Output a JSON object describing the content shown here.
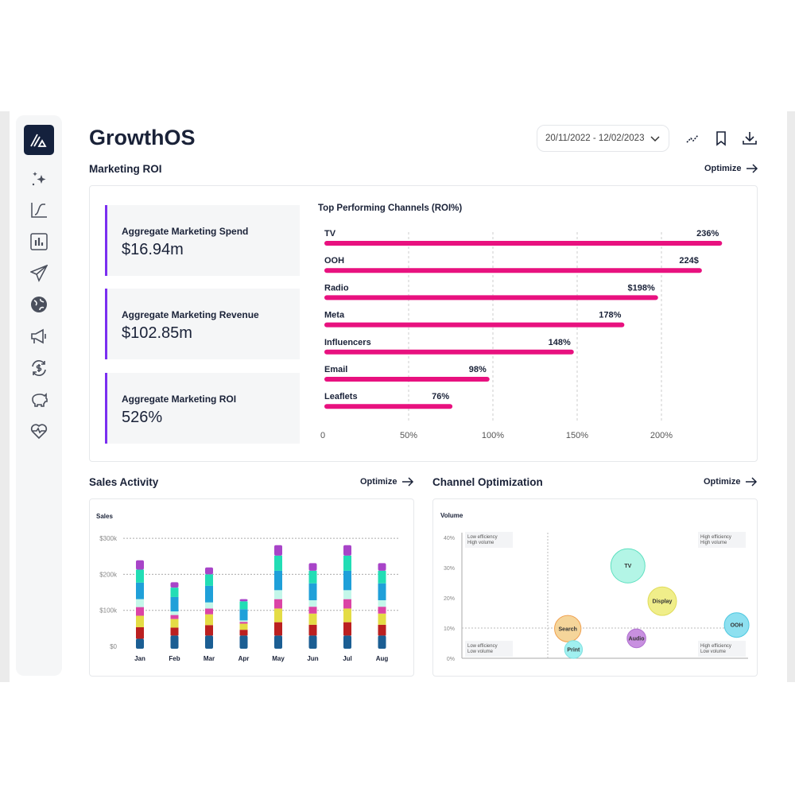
{
  "app": {
    "title": "GrowthOS"
  },
  "header": {
    "date_range": "20/11/2022 - 12/02/2023",
    "icons": [
      "sparkline-icon",
      "bookmark-icon",
      "download-icon"
    ]
  },
  "sidebar": {
    "items": [
      "logo",
      "sparkles-icon",
      "curve-chart-icon",
      "bar-chart-icon",
      "send-icon",
      "globe-icon",
      "megaphone-icon",
      "currency-exchange-icon",
      "piggy-bank-icon",
      "heart-pulse-icon"
    ]
  },
  "marketing_roi": {
    "title": "Marketing ROI",
    "optimize": "Optimize",
    "kpis": [
      {
        "label": "Aggregate Marketing Spend",
        "value": "$16.94m"
      },
      {
        "label": "Aggregate Marketing Revenue",
        "value": "$102.85m"
      },
      {
        "label": "Aggregate Marketing ROI",
        "value": "526%"
      }
    ]
  },
  "sales": {
    "title": "Sales Activity",
    "optimize": "Optimize"
  },
  "channel": {
    "title": "Channel Optimization",
    "optimize": "Optimize"
  },
  "colors": {
    "accent": "#7b2ff0",
    "bar": "#e8117f",
    "navy": "#14213d"
  },
  "chart_data": [
    {
      "type": "bar",
      "orientation": "horizontal",
      "title": "Top Performing Channels (ROI%)",
      "categories": [
        "TV",
        "OOH",
        "Radio",
        "Meta",
        "Influencers",
        "Email",
        "Leaflets"
      ],
      "values": [
        236,
        224,
        198,
        178,
        148,
        98,
        76
      ],
      "data_labels": [
        "236%",
        "224$",
        "$198%",
        "178%",
        "148%",
        "98%",
        "76%"
      ],
      "xticks": [
        "0",
        "50%",
        "100%",
        "150%",
        "200%"
      ],
      "xlim": [
        0,
        250
      ],
      "grid": "vertical dashed",
      "color": "#e8117f"
    },
    {
      "type": "bar",
      "stacked": true,
      "ylabel": "Sales",
      "categories": [
        "Jan",
        "Feb",
        "Mar",
        "Apr",
        "May",
        "Jun",
        "Jul",
        "Aug"
      ],
      "yticks": [
        "$0",
        "$100k",
        "$200k",
        "$300k"
      ],
      "ylim": [
        0,
        300
      ],
      "series": [
        {
          "color": "#1b5e93",
          "values": [
            21,
            30,
            30,
            30,
            30,
            30,
            30,
            30
          ]
        },
        {
          "color": "#bb2020",
          "values": [
            32,
            22,
            29,
            16,
            37,
            30,
            37,
            30
          ]
        },
        {
          "color": "#e4dc45",
          "values": [
            32,
            24,
            30,
            17,
            38,
            31,
            38,
            31
          ]
        },
        {
          "color": "#db44a6",
          "values": [
            24,
            11,
            16,
            5,
            26,
            19,
            26,
            19
          ]
        },
        {
          "color": "#c4f7ea",
          "values": [
            22,
            10,
            17,
            4,
            25,
            18,
            25,
            18
          ]
        },
        {
          "color": "#1fa0d9",
          "values": [
            46,
            40,
            46,
            31,
            54,
            47,
            54,
            47
          ]
        },
        {
          "color": "#22ddb5",
          "values": [
            36,
            26,
            32,
            22,
            42,
            35,
            42,
            35
          ]
        },
        {
          "color": "#a844c8",
          "values": [
            26,
            15,
            19,
            6,
            29,
            21,
            29,
            21
          ]
        }
      ]
    },
    {
      "type": "scatter",
      "bubble": true,
      "ylabel": "Volume",
      "yticks": [
        "0%",
        "10%",
        "20%",
        "30%",
        "40%"
      ],
      "ylim": [
        0,
        40
      ],
      "xlim": [
        0,
        100
      ],
      "quadrants": [
        "Low efficiency\nHigh volume",
        "High efficiency\nHigh volume",
        "Low efficiency\nLow volume",
        "High efficiency\nLow volume"
      ],
      "divider": {
        "x": 30,
        "y": 10
      },
      "points": [
        {
          "label": "TV",
          "x": 58,
          "y": 30.6,
          "size": 100,
          "fill": "#b3f5e6",
          "stroke": "#5ee0c0"
        },
        {
          "label": "Display",
          "x": 70,
          "y": 18.9,
          "size": 70,
          "fill": "#f0ee8a",
          "stroke": "#e0dc5a"
        },
        {
          "label": "Search",
          "x": 37,
          "y": 9.8,
          "size": 60,
          "fill": "#f5d59a",
          "stroke": "#f0a050"
        },
        {
          "label": "OOH",
          "x": 96,
          "y": 11,
          "size": 52,
          "fill": "#8ee0f0",
          "stroke": "#50c8e0"
        },
        {
          "label": "Audio",
          "x": 61,
          "y": 6.6,
          "size": 30,
          "fill": "#c890e0",
          "stroke": "#b070d0"
        },
        {
          "label": "Print",
          "x": 39,
          "y": 2.9,
          "size": 27,
          "fill": "#a0f0f0",
          "stroke": "#80e0e0"
        }
      ]
    }
  ]
}
